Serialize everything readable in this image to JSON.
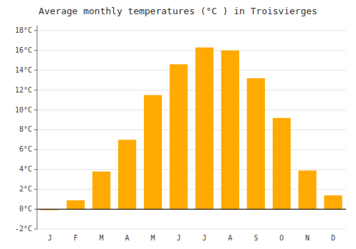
{
  "chart_data": {
    "type": "bar",
    "title": "Average monthly temperatures (°C ) in Troisvierges",
    "categories": [
      "J",
      "F",
      "M",
      "A",
      "M",
      "J",
      "J",
      "A",
      "S",
      "O",
      "N",
      "D"
    ],
    "values": [
      -0.1,
      0.9,
      3.8,
      7.0,
      11.5,
      14.6,
      16.3,
      16.0,
      13.2,
      9.2,
      3.9,
      1.4
    ],
    "color": "#FFAA00",
    "ylim": [
      -2,
      18.5
    ],
    "yticks": [
      {
        "value": -2,
        "label": "-2°C"
      },
      {
        "value": 0,
        "label": "0°C"
      },
      {
        "value": 2,
        "label": "2°C"
      },
      {
        "value": 4,
        "label": "4°C"
      },
      {
        "value": 6,
        "label": "6°C"
      },
      {
        "value": 8,
        "label": "8°C"
      },
      {
        "value": 10,
        "label": "10°C"
      },
      {
        "value": 12,
        "label": "12°C"
      },
      {
        "value": 14,
        "label": "14°C"
      },
      {
        "value": 16,
        "label": "16°C"
      },
      {
        "value": 18,
        "label": "18°C"
      }
    ],
    "grid": true
  }
}
